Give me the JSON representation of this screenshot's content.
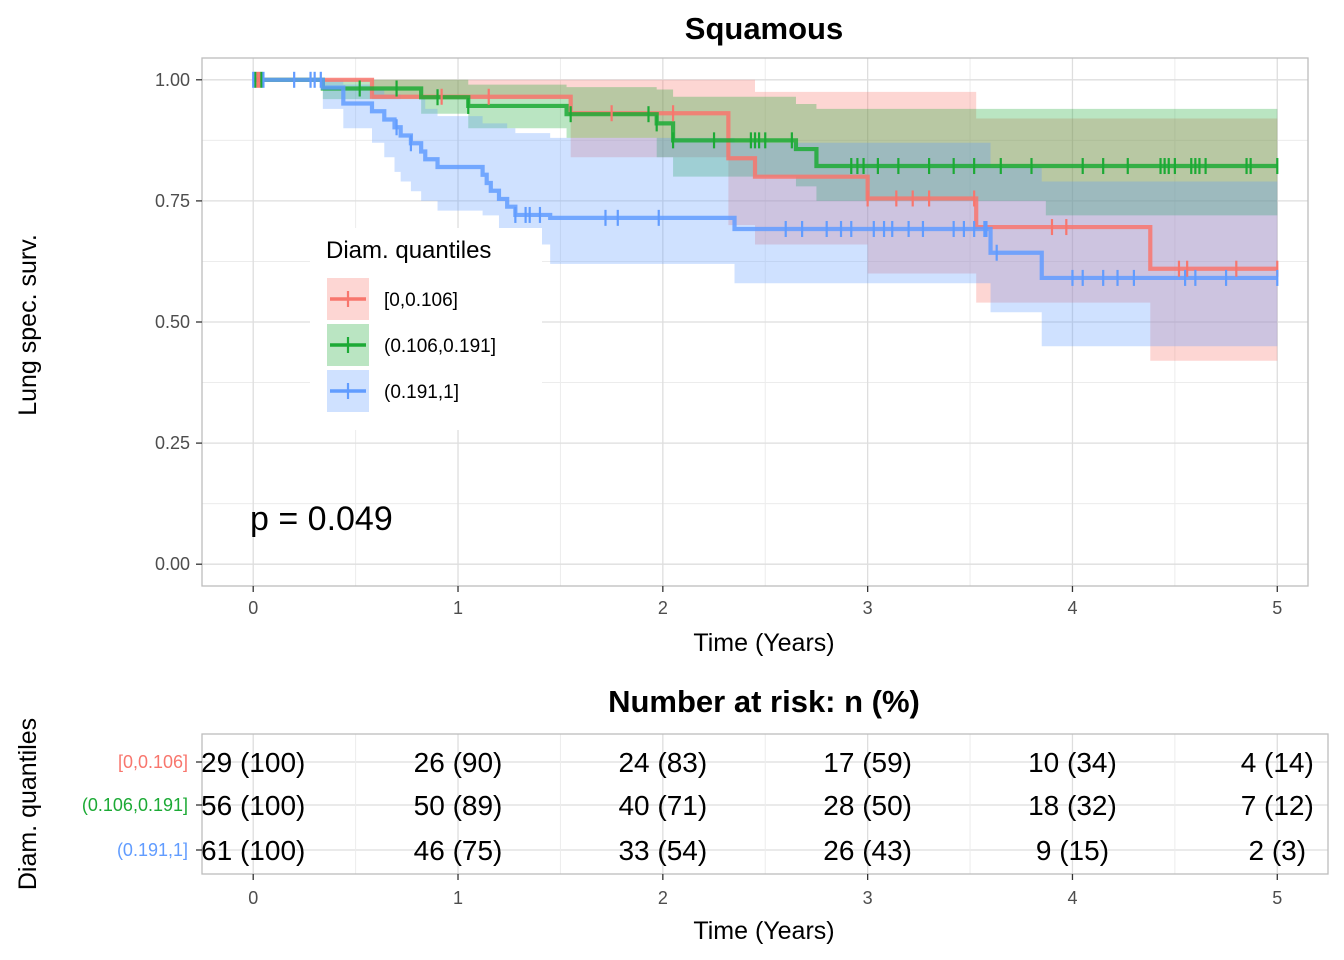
{
  "chart_data": [
    {
      "type": "line",
      "subtype": "kaplan-meier",
      "title": "Squamous",
      "xlabel": "Time (Years)",
      "ylabel": "Lung spec. surv.",
      "xlim": [
        -0.25,
        5.15
      ],
      "ylim": [
        -0.045,
        1.045
      ],
      "x_ticks": [
        "0",
        "1",
        "2",
        "3",
        "4",
        "5"
      ],
      "y_ticks": [
        "0.00",
        "0.25",
        "0.50",
        "0.75",
        "1.00"
      ],
      "grid": true,
      "p_value_label": "p = 0.049",
      "legend": {
        "title": "Diam. quantiles",
        "placement": "left-middle"
      },
      "series": [
        {
          "name": "[0,0.106]",
          "color": "#F8766D",
          "steps": [
            [
              0,
              1.0
            ],
            [
              0.58,
              0.965
            ],
            [
              1.55,
              0.931
            ],
            [
              2.32,
              0.838
            ],
            [
              2.45,
              0.8
            ],
            [
              3.0,
              0.755
            ],
            [
              3.53,
              0.696
            ],
            [
              4.38,
              0.61
            ],
            [
              5.0,
              0.61
            ]
          ],
          "lower": [
            [
              0,
              1.0
            ],
            [
              0.58,
              0.96
            ],
            [
              1.55,
              0.84
            ],
            [
              2.32,
              0.7
            ],
            [
              2.45,
              0.66
            ],
            [
              3.0,
              0.6
            ],
            [
              3.53,
              0.54
            ],
            [
              4.38,
              0.42
            ],
            [
              5.0,
              0.42
            ]
          ],
          "upper": [
            [
              0,
              1.0
            ],
            [
              0.58,
              1.0
            ],
            [
              1.55,
              1.0
            ],
            [
              2.32,
              1.0
            ],
            [
              2.45,
              0.975
            ],
            [
              3.0,
              0.975
            ],
            [
              3.53,
              0.92
            ],
            [
              4.38,
              0.92
            ],
            [
              5.0,
              0.92
            ]
          ],
          "censors": [
            0.02,
            0.03,
            0.92,
            1.15,
            1.75,
            2.05,
            3.0,
            3.14,
            3.22,
            3.3,
            3.52,
            3.9,
            3.97,
            4.52,
            4.56,
            4.8,
            5.0
          ]
        },
        {
          "name": "(0.106,0.191]",
          "color": "#1CAA35",
          "steps": [
            [
              0,
              1.0
            ],
            [
              0.34,
              0.982
            ],
            [
              0.82,
              0.964
            ],
            [
              1.05,
              0.946
            ],
            [
              1.53,
              0.929
            ],
            [
              1.97,
              0.91
            ],
            [
              2.05,
              0.875
            ],
            [
              2.65,
              0.857
            ],
            [
              2.75,
              0.822
            ],
            [
              5.0,
              0.822
            ]
          ],
          "lower": [
            [
              0,
              1.0
            ],
            [
              0.34,
              0.96
            ],
            [
              0.82,
              0.93
            ],
            [
              1.05,
              0.9
            ],
            [
              1.53,
              0.88
            ],
            [
              1.97,
              0.84
            ],
            [
              2.05,
              0.8
            ],
            [
              2.65,
              0.78
            ],
            [
              2.75,
              0.75
            ],
            [
              3.55,
              0.75
            ],
            [
              3.87,
              0.72
            ],
            [
              5.0,
              0.72
            ]
          ],
          "upper": [
            [
              0,
              1.0
            ],
            [
              0.34,
              1.0
            ],
            [
              0.82,
              1.0
            ],
            [
              1.05,
              0.99
            ],
            [
              1.53,
              0.985
            ],
            [
              1.97,
              0.98
            ],
            [
              2.05,
              0.965
            ],
            [
              2.65,
              0.95
            ],
            [
              2.75,
              0.94
            ],
            [
              5.0,
              0.94
            ]
          ],
          "censors": [
            0.01,
            0.04,
            0.52,
            0.7,
            0.9,
            1.05,
            1.55,
            1.93,
            1.97,
            2.05,
            2.25,
            2.43,
            2.45,
            2.47,
            2.5,
            2.63,
            2.92,
            2.95,
            2.98,
            3.05,
            3.15,
            3.3,
            3.42,
            3.52,
            3.65,
            3.8,
            4.05,
            4.15,
            4.27,
            4.43,
            4.45,
            4.47,
            4.5,
            4.58,
            4.6,
            4.62,
            4.65,
            4.85,
            4.87,
            5.0
          ]
        },
        {
          "name": "(0.191,1]",
          "color": "#619CFF",
          "steps": [
            [
              0,
              1.0
            ],
            [
              0.34,
              0.984
            ],
            [
              0.44,
              0.951
            ],
            [
              0.58,
              0.935
            ],
            [
              0.64,
              0.918
            ],
            [
              0.69,
              0.902
            ],
            [
              0.72,
              0.885
            ],
            [
              0.77,
              0.869
            ],
            [
              0.82,
              0.852
            ],
            [
              0.84,
              0.836
            ],
            [
              0.9,
              0.82
            ],
            [
              1.1,
              0.82
            ],
            [
              1.12,
              0.804
            ],
            [
              1.14,
              0.787
            ],
            [
              1.16,
              0.771
            ],
            [
              1.2,
              0.754
            ],
            [
              1.24,
              0.738
            ],
            [
              1.28,
              0.721
            ],
            [
              1.45,
              0.715
            ],
            [
              2.35,
              0.692
            ],
            [
              3.6,
              0.643
            ],
            [
              3.85,
              0.591
            ],
            [
              5.0,
              0.591
            ]
          ],
          "lower": [
            [
              0,
              1.0
            ],
            [
              0.34,
              0.94
            ],
            [
              0.44,
              0.9
            ],
            [
              0.58,
              0.87
            ],
            [
              0.64,
              0.84
            ],
            [
              0.69,
              0.81
            ],
            [
              0.72,
              0.79
            ],
            [
              0.77,
              0.77
            ],
            [
              0.82,
              0.75
            ],
            [
              0.9,
              0.73
            ],
            [
              1.12,
              0.72
            ],
            [
              1.2,
              0.69
            ],
            [
              1.24,
              0.68
            ],
            [
              1.28,
              0.66
            ],
            [
              1.45,
              0.62
            ],
            [
              2.35,
              0.58
            ],
            [
              3.6,
              0.52
            ],
            [
              3.85,
              0.45
            ],
            [
              5.0,
              0.45
            ]
          ],
          "upper": [
            [
              0,
              1.0
            ],
            [
              0.34,
              1.0
            ],
            [
              0.44,
              0.99
            ],
            [
              0.58,
              0.98
            ],
            [
              0.64,
              0.97
            ],
            [
              0.72,
              0.96
            ],
            [
              0.84,
              0.94
            ],
            [
              0.9,
              0.925
            ],
            [
              1.12,
              0.91
            ],
            [
              1.24,
              0.9
            ],
            [
              1.28,
              0.89
            ],
            [
              1.45,
              0.88
            ],
            [
              2.35,
              0.87
            ],
            [
              3.6,
              0.82
            ],
            [
              3.85,
              0.79
            ],
            [
              5.0,
              0.79
            ]
          ],
          "censors": [
            0.0,
            0.05,
            0.2,
            0.28,
            0.3,
            0.33,
            0.7,
            0.77,
            1.28,
            1.33,
            1.35,
            1.4,
            1.72,
            1.78,
            1.98,
            2.6,
            2.68,
            2.8,
            2.87,
            2.92,
            3.03,
            3.08,
            3.12,
            3.2,
            3.27,
            3.42,
            3.47,
            3.52,
            3.57,
            3.58,
            3.63,
            4.0,
            4.05,
            4.15,
            4.22,
            4.3,
            4.55,
            4.6,
            4.75,
            5.0
          ]
        }
      ]
    },
    {
      "type": "table",
      "title": "Number at risk: n (%)",
      "xlabel": "Time (Years)",
      "ylabel": "Diam. quantiles",
      "x_ticks": [
        "0",
        "1",
        "2",
        "3",
        "4",
        "5"
      ],
      "columns": [
        0,
        1,
        2,
        3,
        4,
        5
      ],
      "rows": [
        {
          "label": "[0,0.106]",
          "color": "#F8766D",
          "cells": [
            "29 (100)",
            "26 (90)",
            "24 (83)",
            "17 (59)",
            "10 (34)",
            "4 (14)"
          ]
        },
        {
          "label": "(0.106,0.191]",
          "color": "#1CAA35",
          "cells": [
            "56 (100)",
            "50 (89)",
            "40 (71)",
            "28 (50)",
            "18 (32)",
            "7 (12)"
          ]
        },
        {
          "label": "(0.191,1]",
          "color": "#619CFF",
          "cells": [
            "61 (100)",
            "46 (75)",
            "33 (54)",
            "26 (43)",
            "9 (15)",
            "2 (3)"
          ]
        }
      ]
    }
  ]
}
